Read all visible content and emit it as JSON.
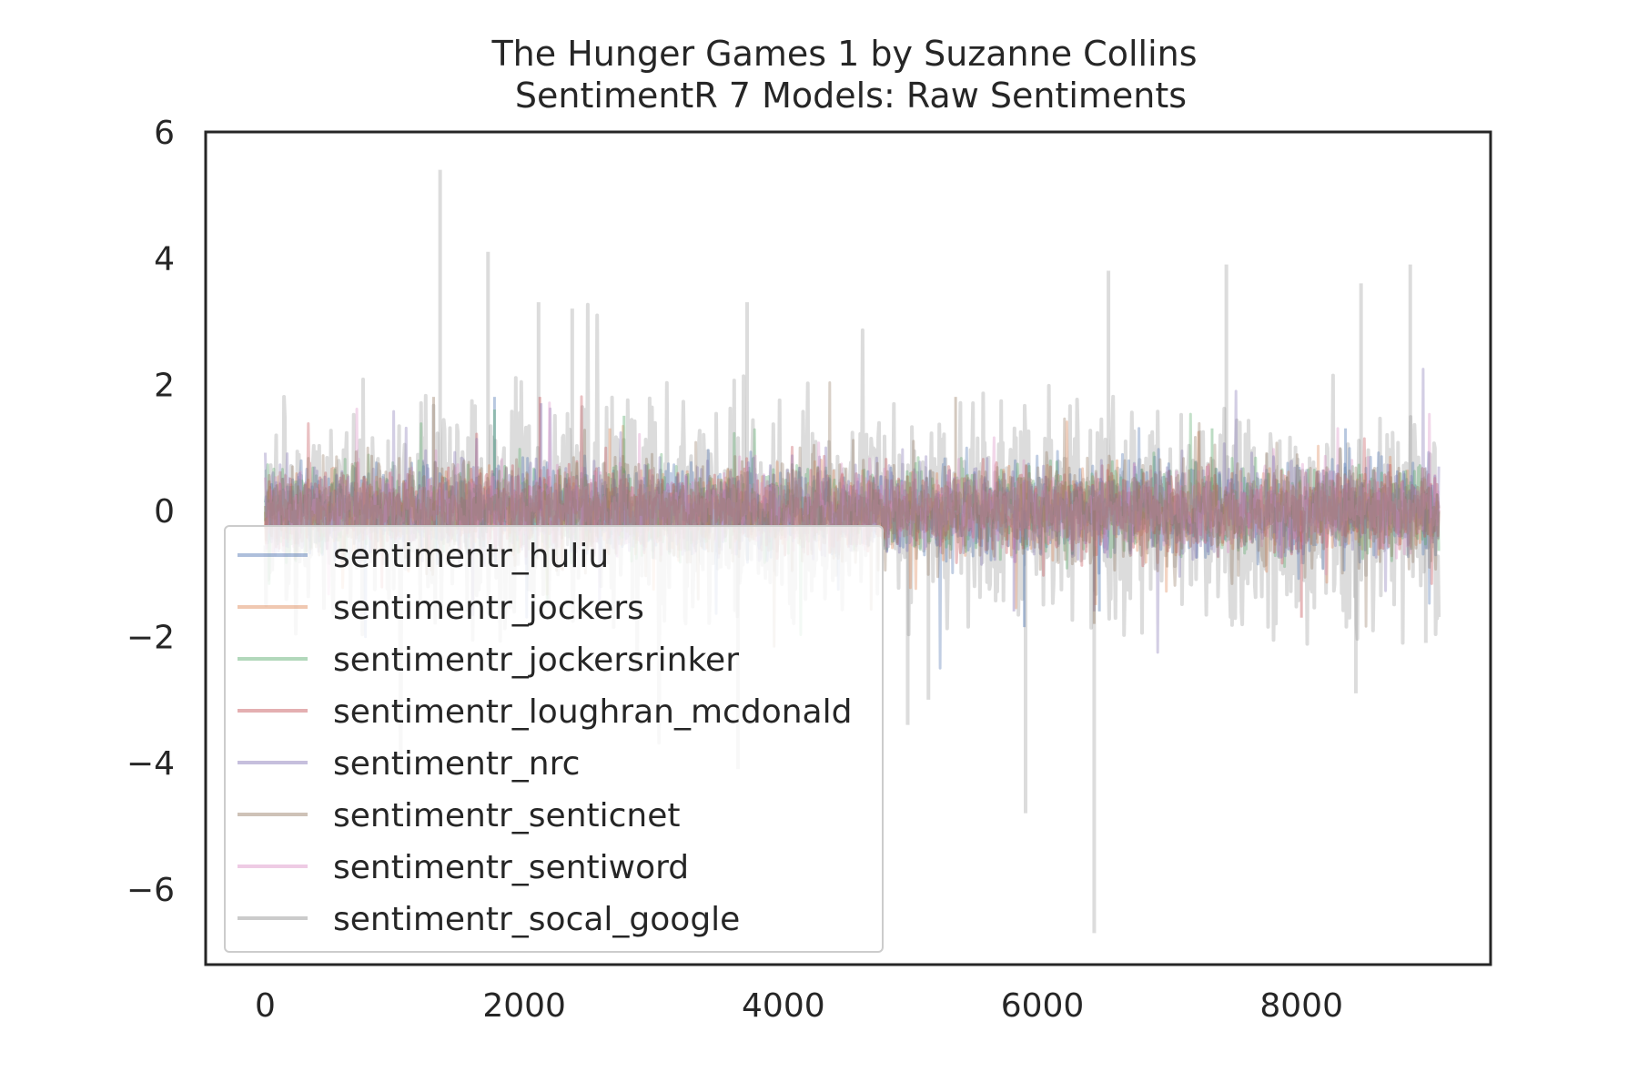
{
  "chart_data": {
    "type": "line",
    "title": "The Hunger Games 1 by Suzanne Collins",
    "subtitle": "SentimentR 7 Models: Raw Sentiments",
    "xlabel": "",
    "ylabel": "",
    "xlim": [
      -460,
      9460
    ],
    "ylim": [
      -7.2,
      6
    ],
    "x_range": [
      0,
      9060
    ],
    "x_ticks": [
      0,
      2000,
      4000,
      6000,
      8000
    ],
    "x_tick_labels": [
      "0",
      "2000",
      "4000",
      "6000",
      "8000"
    ],
    "y_ticks": [
      6,
      4,
      2,
      0,
      -2,
      -4,
      -6
    ],
    "y_tick_labels": [
      "6",
      "4",
      "2",
      "0",
      "−2",
      "−4",
      "−6"
    ],
    "grid": false,
    "legend_position": "lower left",
    "series": [
      {
        "name": "sentimentr_huliu",
        "color": "#4c72b0",
        "noise_scale": 0.35,
        "extremes": [
          [
            1770,
            1.8
          ],
          [
            5860,
            -1.85
          ],
          [
            6440,
            -1.6
          ],
          [
            8340,
            1.3
          ]
        ]
      },
      {
        "name": "sentimentr_jockers",
        "color": "#dd8452",
        "noise_scale": 0.3,
        "extremes": [
          [
            2660,
            1.3
          ],
          [
            6410,
            -1.5
          ]
        ]
      },
      {
        "name": "sentimentr_jockersrinker",
        "color": "#55a868",
        "noise_scale": 0.33,
        "extremes": [
          [
            1770,
            1.6
          ],
          [
            2770,
            1.5
          ],
          [
            7310,
            1.3
          ]
        ]
      },
      {
        "name": "sentimentr_loughran_mcdonald",
        "color": "#c44e52",
        "noise_scale": 0.3,
        "extremes": [
          [
            2120,
            1.8
          ],
          [
            8000,
            -1.7
          ]
        ]
      },
      {
        "name": "sentimentr_nrc",
        "color": "#8172b3",
        "noise_scale": 0.35,
        "extremes": [
          [
            2130,
            1.7
          ],
          [
            5780,
            -1.6
          ],
          [
            6400,
            -1.6
          ]
        ]
      },
      {
        "name": "sentimentr_senticnet",
        "color": "#937860",
        "noise_scale": 0.4,
        "extremes": [
          [
            1300,
            1.8
          ],
          [
            5330,
            1.8
          ],
          [
            6400,
            -1.8
          ]
        ]
      },
      {
        "name": "sentimentr_sentiword",
        "color": "#da8bc3",
        "noise_scale": 0.3,
        "extremes": []
      },
      {
        "name": "sentimentr_socal_google",
        "color": "#8c8c8c",
        "noise_scale": 0.8,
        "extremes": [
          [
            1350,
            5.4
          ],
          [
            1720,
            4.1
          ],
          [
            2110,
            3.3
          ],
          [
            2370,
            3.2
          ],
          [
            3720,
            3.3
          ],
          [
            3650,
            -4.1
          ],
          [
            4960,
            -3.4
          ],
          [
            5120,
            -3.0
          ],
          [
            5870,
            -4.8
          ],
          [
            6400,
            -6.7
          ],
          [
            6510,
            3.8
          ],
          [
            7420,
            3.9
          ],
          [
            8460,
            3.6
          ],
          [
            8840,
            3.9
          ],
          [
            8420,
            -2.9
          ],
          [
            8960,
            -2.1
          ]
        ]
      }
    ]
  }
}
